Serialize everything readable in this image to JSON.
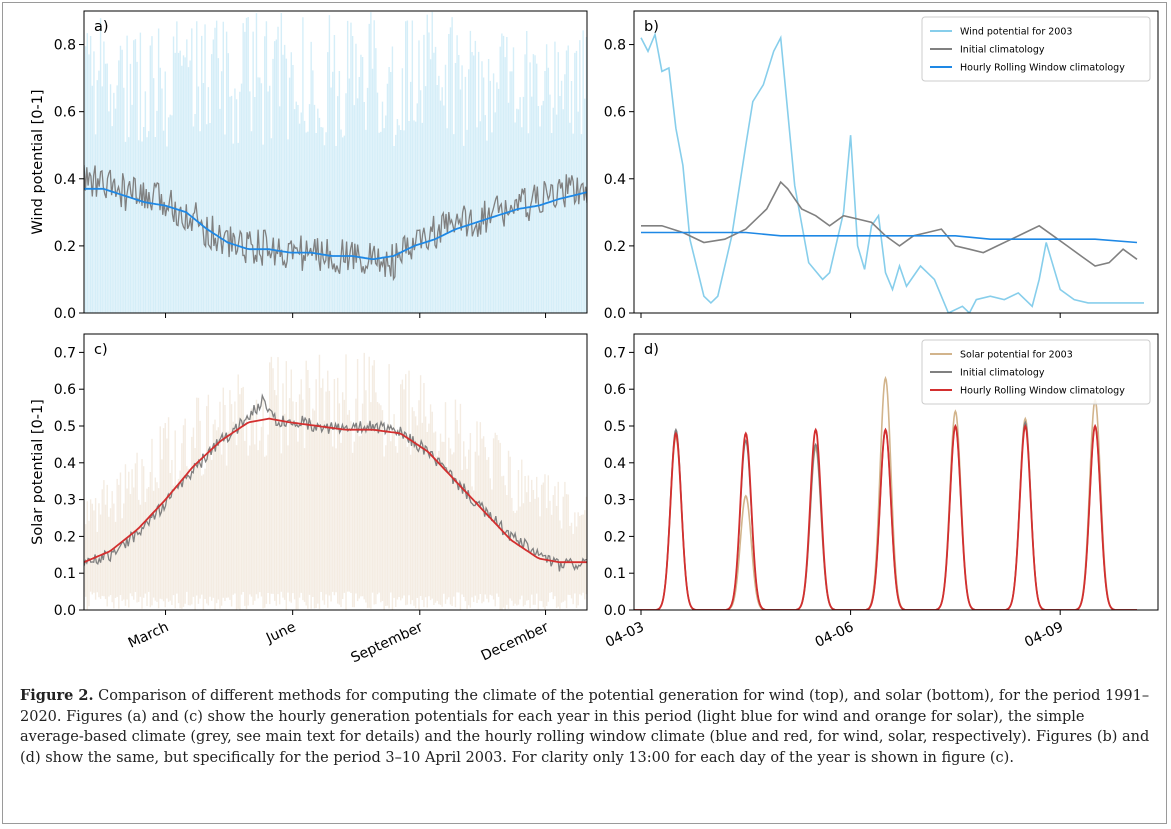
{
  "caption": {
    "label": "Figure 2.",
    "text": "Comparison of different methods for computing the climate of the potential generation for wind (top), and solar (bottom), for the period 1991–2020. Figures (a) and (c) show the hourly generation potentials for each year in this period (light blue for wind and orange for solar), the simple average-based climate (grey, see main text for details) and the hourly rolling window climate (blue and red, for wind, solar, respectively). Figures (b) and (d) show the same, but specifically for the period 3–10 April 2003. For clarity only 13:00 for each day of the year is shown in figure (c)."
  },
  "colors": {
    "wind_hourly": "#87CEEB",
    "wind_rolling": "#1E88E5",
    "solar_hourly": "#D2B48C",
    "solar_rolling": "#D32F2F",
    "initial": "#808080"
  },
  "chart_data": [
    {
      "panel": "a)",
      "type": "line",
      "ylabel": "Wind potential [0-1]",
      "ylim": [
        0,
        0.9
      ],
      "yticks": [
        "0.0",
        "0.2",
        "0.4",
        "0.6",
        "0.8"
      ],
      "xlim": [
        1,
        365
      ],
      "series": [
        {
          "role": "hourly",
          "color": "#87CEEB",
          "band": [
            0.0,
            0.9
          ]
        },
        {
          "role": "initial",
          "color": "#808080",
          "x": [
            1,
            15,
            30,
            45,
            60,
            75,
            90,
            105,
            120,
            135,
            150,
            165,
            180,
            195,
            210,
            225,
            240,
            255,
            270,
            285,
            300,
            315,
            330,
            345,
            365
          ],
          "y": [
            0.4,
            0.38,
            0.36,
            0.34,
            0.33,
            0.3,
            0.25,
            0.21,
            0.2,
            0.19,
            0.18,
            0.18,
            0.17,
            0.17,
            0.16,
            0.15,
            0.2,
            0.24,
            0.26,
            0.28,
            0.3,
            0.32,
            0.33,
            0.36,
            0.37
          ]
        },
        {
          "role": "rolling",
          "color": "#1E88E5",
          "x": [
            1,
            15,
            30,
            45,
            60,
            75,
            90,
            105,
            120,
            135,
            150,
            165,
            180,
            195,
            210,
            225,
            240,
            255,
            270,
            285,
            300,
            315,
            330,
            345,
            365
          ],
          "y": [
            0.37,
            0.37,
            0.35,
            0.33,
            0.32,
            0.3,
            0.25,
            0.21,
            0.19,
            0.19,
            0.18,
            0.18,
            0.17,
            0.17,
            0.16,
            0.17,
            0.2,
            0.22,
            0.25,
            0.27,
            0.29,
            0.31,
            0.32,
            0.34,
            0.36
          ]
        }
      ]
    },
    {
      "panel": "b)",
      "type": "line",
      "ylim": [
        0,
        0.9
      ],
      "yticks": [
        "0.0",
        "0.2",
        "0.4",
        "0.6",
        "0.8"
      ],
      "xlim": [
        -0.1,
        7.4
      ],
      "legend": [
        "Wind potential for 2003",
        "Initial climatology",
        "Hourly Rolling Window climatology"
      ],
      "legend_position": "top-right",
      "series": [
        {
          "name": "Wind potential for 2003",
          "color": "#87CEEB",
          "x": [
            0.0,
            0.1,
            0.2,
            0.3,
            0.4,
            0.5,
            0.6,
            0.7,
            0.9,
            1.0,
            1.1,
            1.3,
            1.5,
            1.6,
            1.75,
            1.9,
            2.0,
            2.2,
            2.4,
            2.6,
            2.7,
            2.9,
            3.0,
            3.1,
            3.2,
            3.3,
            3.4,
            3.5,
            3.6,
            3.7,
            3.8,
            4.0,
            4.2,
            4.4,
            4.6,
            4.7,
            4.8,
            5.0,
            5.2,
            5.4,
            5.6,
            5.7,
            5.8,
            6.0,
            6.2,
            6.4,
            6.6,
            6.7,
            6.8,
            6.9,
            7.0,
            7.1,
            7.2
          ],
          "y": [
            0.82,
            0.78,
            0.83,
            0.72,
            0.73,
            0.55,
            0.44,
            0.22,
            0.05,
            0.03,
            0.05,
            0.23,
            0.5,
            0.63,
            0.68,
            0.78,
            0.82,
            0.38,
            0.15,
            0.1,
            0.12,
            0.3,
            0.53,
            0.2,
            0.13,
            0.26,
            0.29,
            0.12,
            0.07,
            0.14,
            0.08,
            0.14,
            0.1,
            0.0,
            0.02,
            0.0,
            0.04,
            0.05,
            0.04,
            0.06,
            0.02,
            0.1,
            0.21,
            0.07,
            0.04,
            0.03,
            0.03,
            0.03,
            0.03,
            0.03,
            0.03,
            0.03,
            0.03
          ]
        },
        {
          "name": "Initial climatology",
          "color": "#808080",
          "x": [
            0.0,
            0.3,
            0.6,
            0.9,
            1.2,
            1.5,
            1.8,
            2.0,
            2.1,
            2.3,
            2.5,
            2.7,
            2.9,
            3.1,
            3.3,
            3.5,
            3.7,
            3.9,
            4.1,
            4.3,
            4.5,
            4.7,
            4.9,
            5.1,
            5.3,
            5.5,
            5.7,
            5.9,
            6.1,
            6.3,
            6.5,
            6.7,
            6.9,
            7.1
          ],
          "y": [
            0.26,
            0.26,
            0.24,
            0.21,
            0.22,
            0.25,
            0.31,
            0.39,
            0.37,
            0.31,
            0.29,
            0.26,
            0.29,
            0.28,
            0.27,
            0.23,
            0.2,
            0.23,
            0.24,
            0.25,
            0.2,
            0.19,
            0.18,
            0.2,
            0.22,
            0.24,
            0.26,
            0.23,
            0.2,
            0.17,
            0.14,
            0.15,
            0.19,
            0.16
          ]
        },
        {
          "name": "Hourly Rolling Window climatology",
          "color": "#1E88E5",
          "x": [
            0.0,
            0.5,
            1.0,
            1.5,
            2.0,
            2.5,
            3.0,
            3.5,
            4.0,
            4.5,
            5.0,
            5.5,
            6.0,
            6.5,
            7.1
          ],
          "y": [
            0.24,
            0.24,
            0.24,
            0.24,
            0.23,
            0.23,
            0.23,
            0.23,
            0.23,
            0.23,
            0.22,
            0.22,
            0.22,
            0.22,
            0.21
          ]
        }
      ]
    },
    {
      "panel": "c)",
      "type": "line",
      "ylabel": "Solar potential [0-1]",
      "ylim": [
        0,
        0.75
      ],
      "yticks": [
        "0.0",
        "0.1",
        "0.2",
        "0.3",
        "0.4",
        "0.5",
        "0.6",
        "0.7"
      ],
      "xlim": [
        1,
        365
      ],
      "xticks": [
        {
          "label": "March",
          "x": 60
        },
        {
          "label": "June",
          "x": 152
        },
        {
          "label": "September",
          "x": 244
        },
        {
          "label": "December",
          "x": 335
        }
      ],
      "series": [
        {
          "role": "hourly",
          "color": "#D2B48C",
          "band_upper": {
            "x": [
              1,
              30,
              60,
              90,
              120,
              150,
              180,
              210,
              240,
              270,
              300,
              330,
              365
            ],
            "y": [
              0.33,
              0.4,
              0.52,
              0.62,
              0.68,
              0.71,
              0.71,
              0.7,
              0.66,
              0.58,
              0.48,
              0.38,
              0.33
            ]
          }
        },
        {
          "role": "initial",
          "color": "#808080",
          "x": [
            1,
            20,
            40,
            60,
            80,
            100,
            120,
            130,
            140,
            150,
            170,
            190,
            210,
            230,
            250,
            270,
            290,
            310,
            330,
            345,
            365
          ],
          "y": [
            0.13,
            0.15,
            0.21,
            0.29,
            0.38,
            0.46,
            0.52,
            0.57,
            0.51,
            0.52,
            0.5,
            0.49,
            0.5,
            0.48,
            0.43,
            0.35,
            0.27,
            0.2,
            0.15,
            0.12,
            0.13
          ]
        },
        {
          "role": "rolling",
          "color": "#D32F2F",
          "x": [
            1,
            20,
            40,
            60,
            80,
            100,
            120,
            135,
            150,
            170,
            190,
            210,
            230,
            250,
            270,
            290,
            310,
            330,
            345,
            365
          ],
          "y": [
            0.13,
            0.16,
            0.22,
            0.3,
            0.39,
            0.46,
            0.51,
            0.52,
            0.51,
            0.5,
            0.49,
            0.49,
            0.48,
            0.43,
            0.35,
            0.27,
            0.19,
            0.14,
            0.13,
            0.13
          ]
        }
      ]
    },
    {
      "panel": "d)",
      "type": "line",
      "ylim": [
        0,
        0.75
      ],
      "yticks": [
        "0.0",
        "0.1",
        "0.2",
        "0.3",
        "0.4",
        "0.5",
        "0.6",
        "0.7"
      ],
      "xlim": [
        -0.1,
        7.4
      ],
      "xticks": [
        {
          "label": "04-03",
          "x": 0
        },
        {
          "label": "04-06",
          "x": 3
        },
        {
          "label": "04-09",
          "x": 6
        }
      ],
      "legend": [
        "Solar potential for 2003",
        "Initial climatology",
        "Hourly Rolling Window climatology"
      ],
      "legend_position": "top-right",
      "peaks": [
        {
          "x": 0.5,
          "solar": 0.47,
          "initial": 0.49,
          "rolling": 0.48
        },
        {
          "x": 1.5,
          "solar": 0.31,
          "initial": 0.46,
          "rolling": 0.48
        },
        {
          "x": 2.5,
          "solar": 0.44,
          "initial": 0.45,
          "rolling": 0.49
        },
        {
          "x": 3.5,
          "solar": 0.63,
          "initial": 0.49,
          "rolling": 0.49
        },
        {
          "x": 4.5,
          "solar": 0.54,
          "initial": 0.5,
          "rolling": 0.5
        },
        {
          "x": 5.5,
          "solar": 0.52,
          "initial": 0.51,
          "rolling": 0.5
        },
        {
          "x": 6.5,
          "solar": 0.57,
          "initial": 0.5,
          "rolling": 0.5
        }
      ]
    }
  ]
}
